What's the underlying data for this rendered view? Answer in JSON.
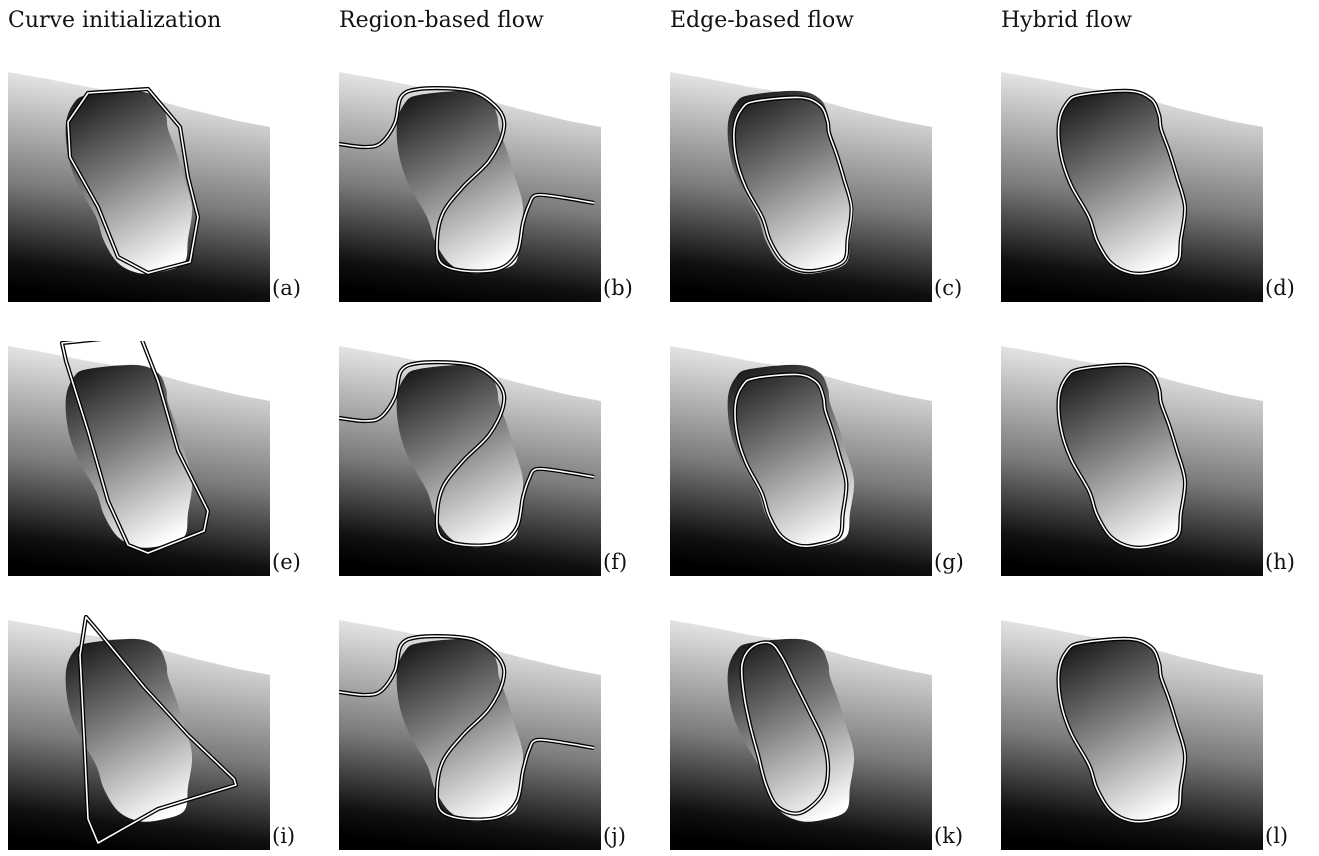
{
  "columns": [
    {
      "title": "Curve initialization"
    },
    {
      "title": "Region-based flow"
    },
    {
      "title": "Edge-based flow"
    },
    {
      "title": "Hybrid flow"
    }
  ],
  "panels": [
    {
      "label": "(a)"
    },
    {
      "label": "(b)"
    },
    {
      "label": "(c)"
    },
    {
      "label": "(d)"
    },
    {
      "label": "(e)"
    },
    {
      "label": "(f)"
    },
    {
      "label": "(g)"
    },
    {
      "label": "(h)"
    },
    {
      "label": "(i)"
    },
    {
      "label": "(j)"
    },
    {
      "label": "(k)"
    },
    {
      "label": "(l)"
    }
  ]
}
